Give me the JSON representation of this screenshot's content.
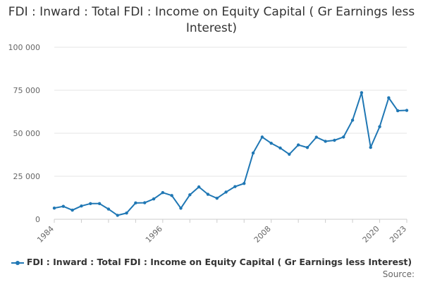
{
  "chart_data": {
    "type": "line",
    "title": "FDI : Inward : Total FDI : Income on Equity Capital ( Gr Earnings less Interest)",
    "xlabel": "",
    "ylabel": "",
    "x": [
      1984,
      1985,
      1986,
      1987,
      1988,
      1989,
      1990,
      1991,
      1992,
      1993,
      1994,
      1995,
      1996,
      1997,
      1998,
      1999,
      2000,
      2001,
      2002,
      2003,
      2004,
      2005,
      2006,
      2007,
      2008,
      2009,
      2010,
      2011,
      2012,
      2013,
      2014,
      2015,
      2016,
      2017,
      2018,
      2019,
      2020,
      2021,
      2022,
      2023
    ],
    "xlim": [
      1984,
      2023
    ],
    "x_tick_labels": [
      "1984",
      "1996",
      "2008",
      "2020",
      "2023"
    ],
    "ylim": [
      0,
      100000
    ],
    "y_ticks": [
      0,
      25000,
      50000,
      75000,
      100000
    ],
    "y_tick_labels": [
      "0",
      "25 000",
      "50 000",
      "75 000",
      "100 000"
    ],
    "grid": true,
    "legend_position": "bottom",
    "series": [
      {
        "name": "FDI : Inward : Total FDI : Income on Equity Capital ( Gr Earnings less Interest)",
        "color": "#1f77b4",
        "values": [
          6500,
          7500,
          5300,
          7700,
          9100,
          9100,
          5900,
          2300,
          3600,
          9500,
          9600,
          11800,
          15500,
          13800,
          6400,
          14200,
          18800,
          14500,
          12200,
          15800,
          19000,
          20800,
          38500,
          47800,
          44200,
          41400,
          37800,
          43200,
          41700,
          47700,
          45300,
          45900,
          47800,
          57600,
          73600,
          41800,
          53800,
          70600,
          63100,
          63300
        ]
      }
    ]
  },
  "source_label": "Source:"
}
